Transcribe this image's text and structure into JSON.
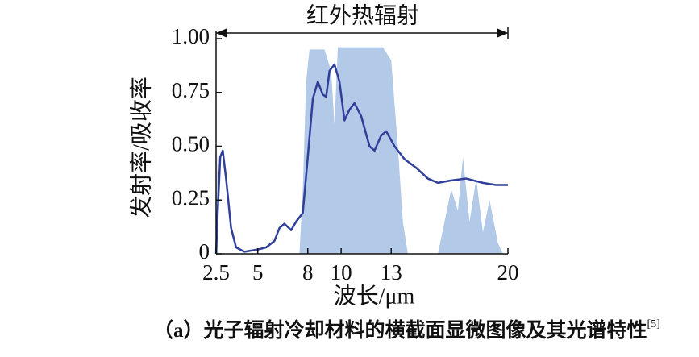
{
  "chart_data": {
    "type": "line",
    "annotation": "红外热辐射",
    "x_label": "波长/μm",
    "y_label": "发射率/吸收率",
    "xlim": [
      2.5,
      20
    ],
    "ylim": [
      0,
      1
    ],
    "xticks": [
      2.5,
      5,
      8,
      10,
      13,
      20
    ],
    "yticks": [
      0,
      0.25,
      {
        "value": 0.5,
        "label": "0.50"
      },
      0.75,
      {
        "value": 1,
        "label": "1.00"
      }
    ],
    "grid": false,
    "series": [
      {
        "type": "area",
        "color": "#b3c9e8",
        "x": [
          2.5,
          2.55,
          2.65,
          7.5,
          7.7,
          7.9,
          8.1,
          9.0,
          9.4,
          9.6,
          9.8,
          12.5,
          13.0,
          13.4,
          13.7,
          14.0,
          15.8,
          16.2,
          16.6,
          17.0,
          17.3,
          17.7,
          18.1,
          18.5,
          18.9,
          19.4,
          19.7
        ],
        "values": [
          0,
          0.5,
          0,
          0,
          0.3,
          0.8,
          0.95,
          0.95,
          0.85,
          0.6,
          0.96,
          0.96,
          0.9,
          0.5,
          0.15,
          0,
          0,
          0.15,
          0.3,
          0.2,
          0.45,
          0.15,
          0.35,
          0.1,
          0.25,
          0.05,
          0
        ]
      },
      {
        "type": "line",
        "color": "#2f3f9a",
        "x": [
          2.5,
          2.6,
          2.75,
          2.9,
          3.1,
          3.4,
          3.7,
          4.2,
          5,
          5.5,
          6,
          6.3,
          6.6,
          7,
          7.3,
          7.7,
          8,
          8.3,
          8.6,
          8.9,
          9.1,
          9.3,
          9.6,
          9.9,
          10.2,
          10.5,
          10.8,
          11.2,
          11.7,
          12.0,
          12.4,
          12.7,
          13.2,
          13.8,
          14.5,
          15.2,
          15.8,
          16.5,
          17.5,
          18.5,
          19.3,
          20
        ],
        "values": [
          0,
          0.2,
          0.45,
          0.48,
          0.35,
          0.12,
          0.03,
          0.01,
          0.02,
          0.03,
          0.06,
          0.12,
          0.14,
          0.11,
          0.15,
          0.19,
          0.45,
          0.72,
          0.8,
          0.74,
          0.73,
          0.85,
          0.88,
          0.8,
          0.62,
          0.67,
          0.7,
          0.64,
          0.5,
          0.48,
          0.55,
          0.57,
          0.5,
          0.44,
          0.4,
          0.35,
          0.33,
          0.34,
          0.35,
          0.33,
          0.32,
          0.32
        ]
      }
    ]
  },
  "caption": {
    "text": "（a）光子辐射冷却材料的横截面显微图像及其光谱特性",
    "ref": "[5]"
  }
}
